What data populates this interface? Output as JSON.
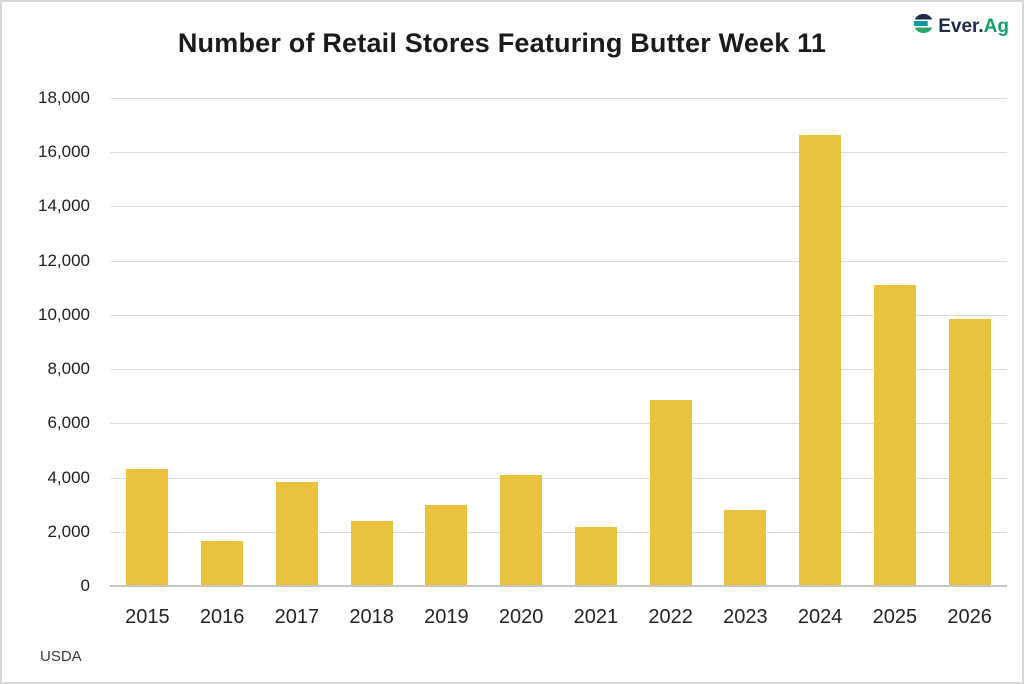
{
  "logo": {
    "brand_primary": "Ever.",
    "brand_accent": "Ag",
    "primary_color": "#1e2a4a",
    "accent_color": "#17a06f",
    "mark_stripe_top": "#1e2a4a",
    "mark_stripe_middle": "#1195a0",
    "mark_stripe_bottom": "#2ba765"
  },
  "source": "USDA",
  "colors": {
    "bar": "#e9c23f",
    "gridline": "#dcdcdc",
    "baseline": "#c7c7c7",
    "title_text": "#1b1b1b",
    "axis_text": "#242424"
  },
  "chart_data": {
    "type": "bar",
    "title": "Number of Retail Stores Featuring Butter Week 11",
    "categories": [
      "2015",
      "2016",
      "2017",
      "2018",
      "2019",
      "2020",
      "2021",
      "2022",
      "2023",
      "2024",
      "2025",
      "2026"
    ],
    "values": [
      4330,
      1660,
      3840,
      2400,
      2980,
      4110,
      2180,
      6850,
      2790,
      16630,
      11120,
      9840
    ],
    "xlabel": "",
    "ylabel": "",
    "ylim": [
      0,
      18000
    ],
    "ytick_step": 2000,
    "grid": true,
    "legend": "none",
    "bar_color": "#e9c23f",
    "source": "USDA"
  }
}
